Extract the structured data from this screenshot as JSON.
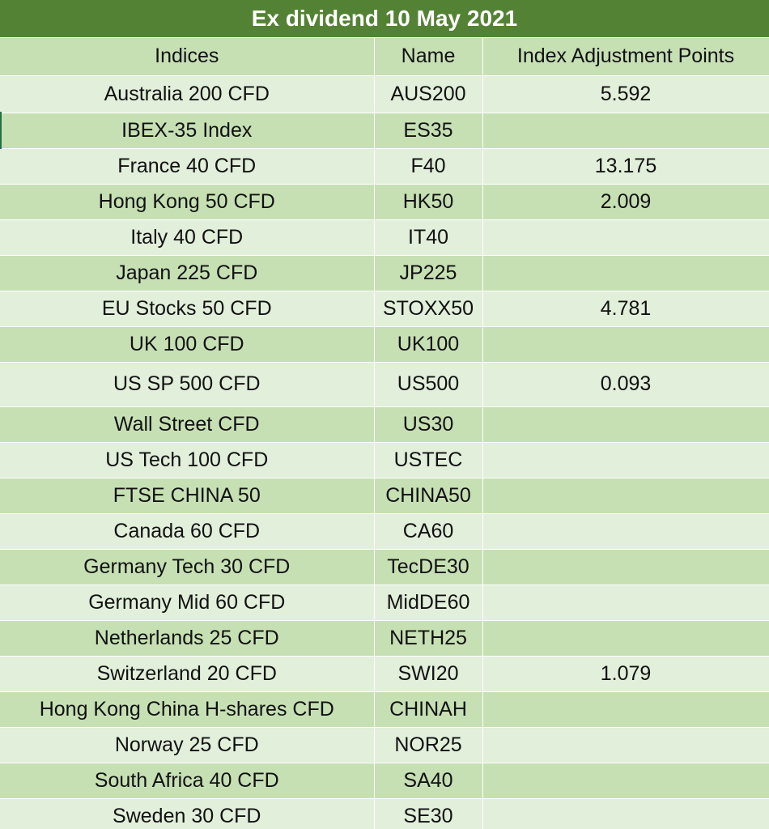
{
  "title": "Ex dividend 10 May 2021",
  "columns": [
    "Indices",
    "Name",
    "Index Adjustment Points"
  ],
  "rows": [
    {
      "index": "Australia 200 CFD",
      "name": "AUS200",
      "points": "5.592"
    },
    {
      "index": "IBEX-35 Index",
      "name": "ES35",
      "points": ""
    },
    {
      "index": "France 40 CFD",
      "name": "F40",
      "points": "13.175"
    },
    {
      "index": "Hong Kong 50 CFD",
      "name": "HK50",
      "points": "2.009"
    },
    {
      "index": "Italy 40 CFD",
      "name": "IT40",
      "points": ""
    },
    {
      "index": "Japan 225 CFD",
      "name": "JP225",
      "points": ""
    },
    {
      "index": "EU Stocks 50 CFD",
      "name": "STOXX50",
      "points": "4.781"
    },
    {
      "index": "UK 100 CFD",
      "name": "UK100",
      "points": ""
    },
    {
      "index": "US SP 500 CFD",
      "name": "US500",
      "points": "0.093"
    },
    {
      "index": "Wall Street CFD",
      "name": "US30",
      "points": ""
    },
    {
      "index": "US Tech 100 CFD",
      "name": "USTEC",
      "points": ""
    },
    {
      "index": "FTSE CHINA 50",
      "name": "CHINA50",
      "points": ""
    },
    {
      "index": "Canada 60 CFD",
      "name": "CA60",
      "points": ""
    },
    {
      "index": "Germany Tech 30 CFD",
      "name": "TecDE30",
      "points": ""
    },
    {
      "index": "Germany Mid 60 CFD",
      "name": "MidDE60",
      "points": ""
    },
    {
      "index": "Netherlands 25 CFD",
      "name": "NETH25",
      "points": ""
    },
    {
      "index": "Switzerland 20 CFD",
      "name": "SWI20",
      "points": "1.079"
    },
    {
      "index": "Hong Kong China H-shares CFD",
      "name": "CHINAH",
      "points": ""
    },
    {
      "index": "Norway 25 CFD",
      "name": "NOR25",
      "points": ""
    },
    {
      "index": "South Africa 40 CFD",
      "name": "SA40",
      "points": ""
    },
    {
      "index": "Sweden 30 CFD",
      "name": "SE30",
      "points": ""
    }
  ],
  "colors": {
    "title_bg": "#548235",
    "title_text": "#ffffff",
    "band_dark": "#c6e0b4",
    "band_light": "#e2efda"
  }
}
